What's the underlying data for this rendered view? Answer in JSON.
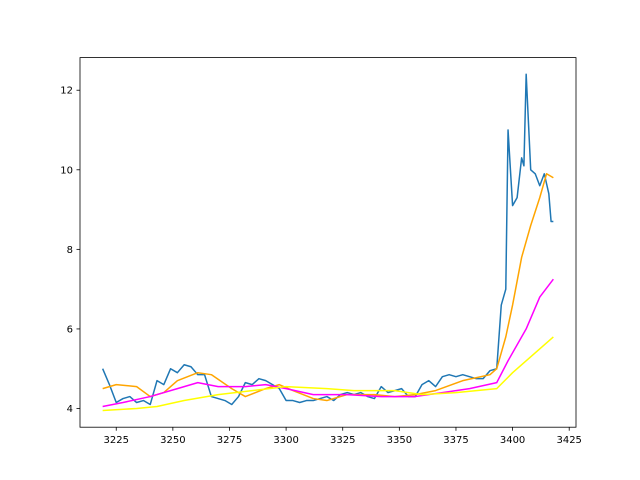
{
  "chart_data": {
    "type": "line",
    "xlim": [
      3209,
      3428
    ],
    "ylim": [
      3.53,
      12.82
    ],
    "xticks": [
      3225,
      3250,
      3275,
      3300,
      3325,
      3350,
      3375,
      3400,
      3425
    ],
    "yticks": [
      4,
      6,
      8,
      10,
      12
    ],
    "series": [
      {
        "color": "#1f77b4",
        "x": [
          3219,
          3222,
          3225,
          3228,
          3231,
          3234,
          3237,
          3240,
          3243,
          3246,
          3249,
          3252,
          3255,
          3258,
          3261,
          3264,
          3267,
          3270,
          3273,
          3276,
          3279,
          3282,
          3285,
          3288,
          3291,
          3294,
          3297,
          3300,
          3303,
          3306,
          3309,
          3312,
          3315,
          3318,
          3321,
          3324,
          3327,
          3330,
          3333,
          3336,
          3339,
          3342,
          3345,
          3348,
          3351,
          3354,
          3357,
          3360,
          3363,
          3366,
          3369,
          3372,
          3375,
          3378,
          3381,
          3384,
          3387,
          3390,
          3393,
          3395,
          3397,
          3398,
          3400,
          3402,
          3404,
          3405,
          3406,
          3408,
          3410,
          3412,
          3414,
          3416,
          3417,
          3418
        ],
        "values": [
          5.0,
          4.6,
          4.15,
          4.25,
          4.3,
          4.15,
          4.2,
          4.1,
          4.7,
          4.6,
          5.0,
          4.9,
          5.1,
          5.05,
          4.85,
          4.85,
          4.3,
          4.25,
          4.2,
          4.1,
          4.3,
          4.65,
          4.6,
          4.75,
          4.7,
          4.6,
          4.5,
          4.2,
          4.2,
          4.15,
          4.2,
          4.2,
          4.25,
          4.3,
          4.2,
          4.35,
          4.4,
          4.35,
          4.4,
          4.3,
          4.25,
          4.55,
          4.4,
          4.45,
          4.5,
          4.3,
          4.3,
          4.6,
          4.7,
          4.55,
          4.8,
          4.85,
          4.8,
          4.85,
          4.8,
          4.75,
          4.75,
          4.95,
          5.0,
          6.6,
          7.0,
          11.0,
          9.1,
          9.3,
          10.3,
          10.1,
          12.4,
          10.0,
          9.9,
          9.6,
          9.9,
          9.4,
          8.7,
          8.7
        ]
      },
      {
        "color": "#ffa500",
        "x": [
          3219,
          3225,
          3234,
          3240,
          3246,
          3252,
          3261,
          3267,
          3276,
          3282,
          3291,
          3297,
          3303,
          3312,
          3318,
          3327,
          3339,
          3348,
          3357,
          3366,
          3378,
          3390,
          3393,
          3397,
          3400,
          3404,
          3408,
          3412,
          3415,
          3418
        ],
        "values": [
          4.5,
          4.6,
          4.55,
          4.3,
          4.4,
          4.7,
          4.9,
          4.85,
          4.5,
          4.3,
          4.5,
          4.6,
          4.45,
          4.25,
          4.2,
          4.35,
          4.35,
          4.3,
          4.35,
          4.45,
          4.7,
          4.85,
          5.0,
          5.8,
          6.6,
          7.8,
          8.6,
          9.3,
          9.9,
          9.8
        ]
      },
      {
        "color": "#ff00ff",
        "x": [
          3219,
          3228,
          3240,
          3252,
          3261,
          3270,
          3282,
          3291,
          3300,
          3312,
          3327,
          3342,
          3357,
          3369,
          3381,
          3393,
          3398,
          3406,
          3412,
          3418
        ],
        "values": [
          4.05,
          4.15,
          4.3,
          4.5,
          4.65,
          4.55,
          4.55,
          4.6,
          4.5,
          4.35,
          4.35,
          4.3,
          4.3,
          4.4,
          4.5,
          4.65,
          5.2,
          6.0,
          6.8,
          7.25
        ]
      },
      {
        "color": "#ffff00",
        "x": [
          3219,
          3234,
          3243,
          3255,
          3270,
          3285,
          3300,
          3318,
          3330,
          3348,
          3360,
          3375,
          3393,
          3400,
          3408,
          3418
        ],
        "values": [
          3.95,
          4.0,
          4.05,
          4.2,
          4.35,
          4.45,
          4.55,
          4.5,
          4.45,
          4.45,
          4.35,
          4.4,
          4.5,
          4.9,
          5.3,
          5.8
        ]
      }
    ]
  }
}
